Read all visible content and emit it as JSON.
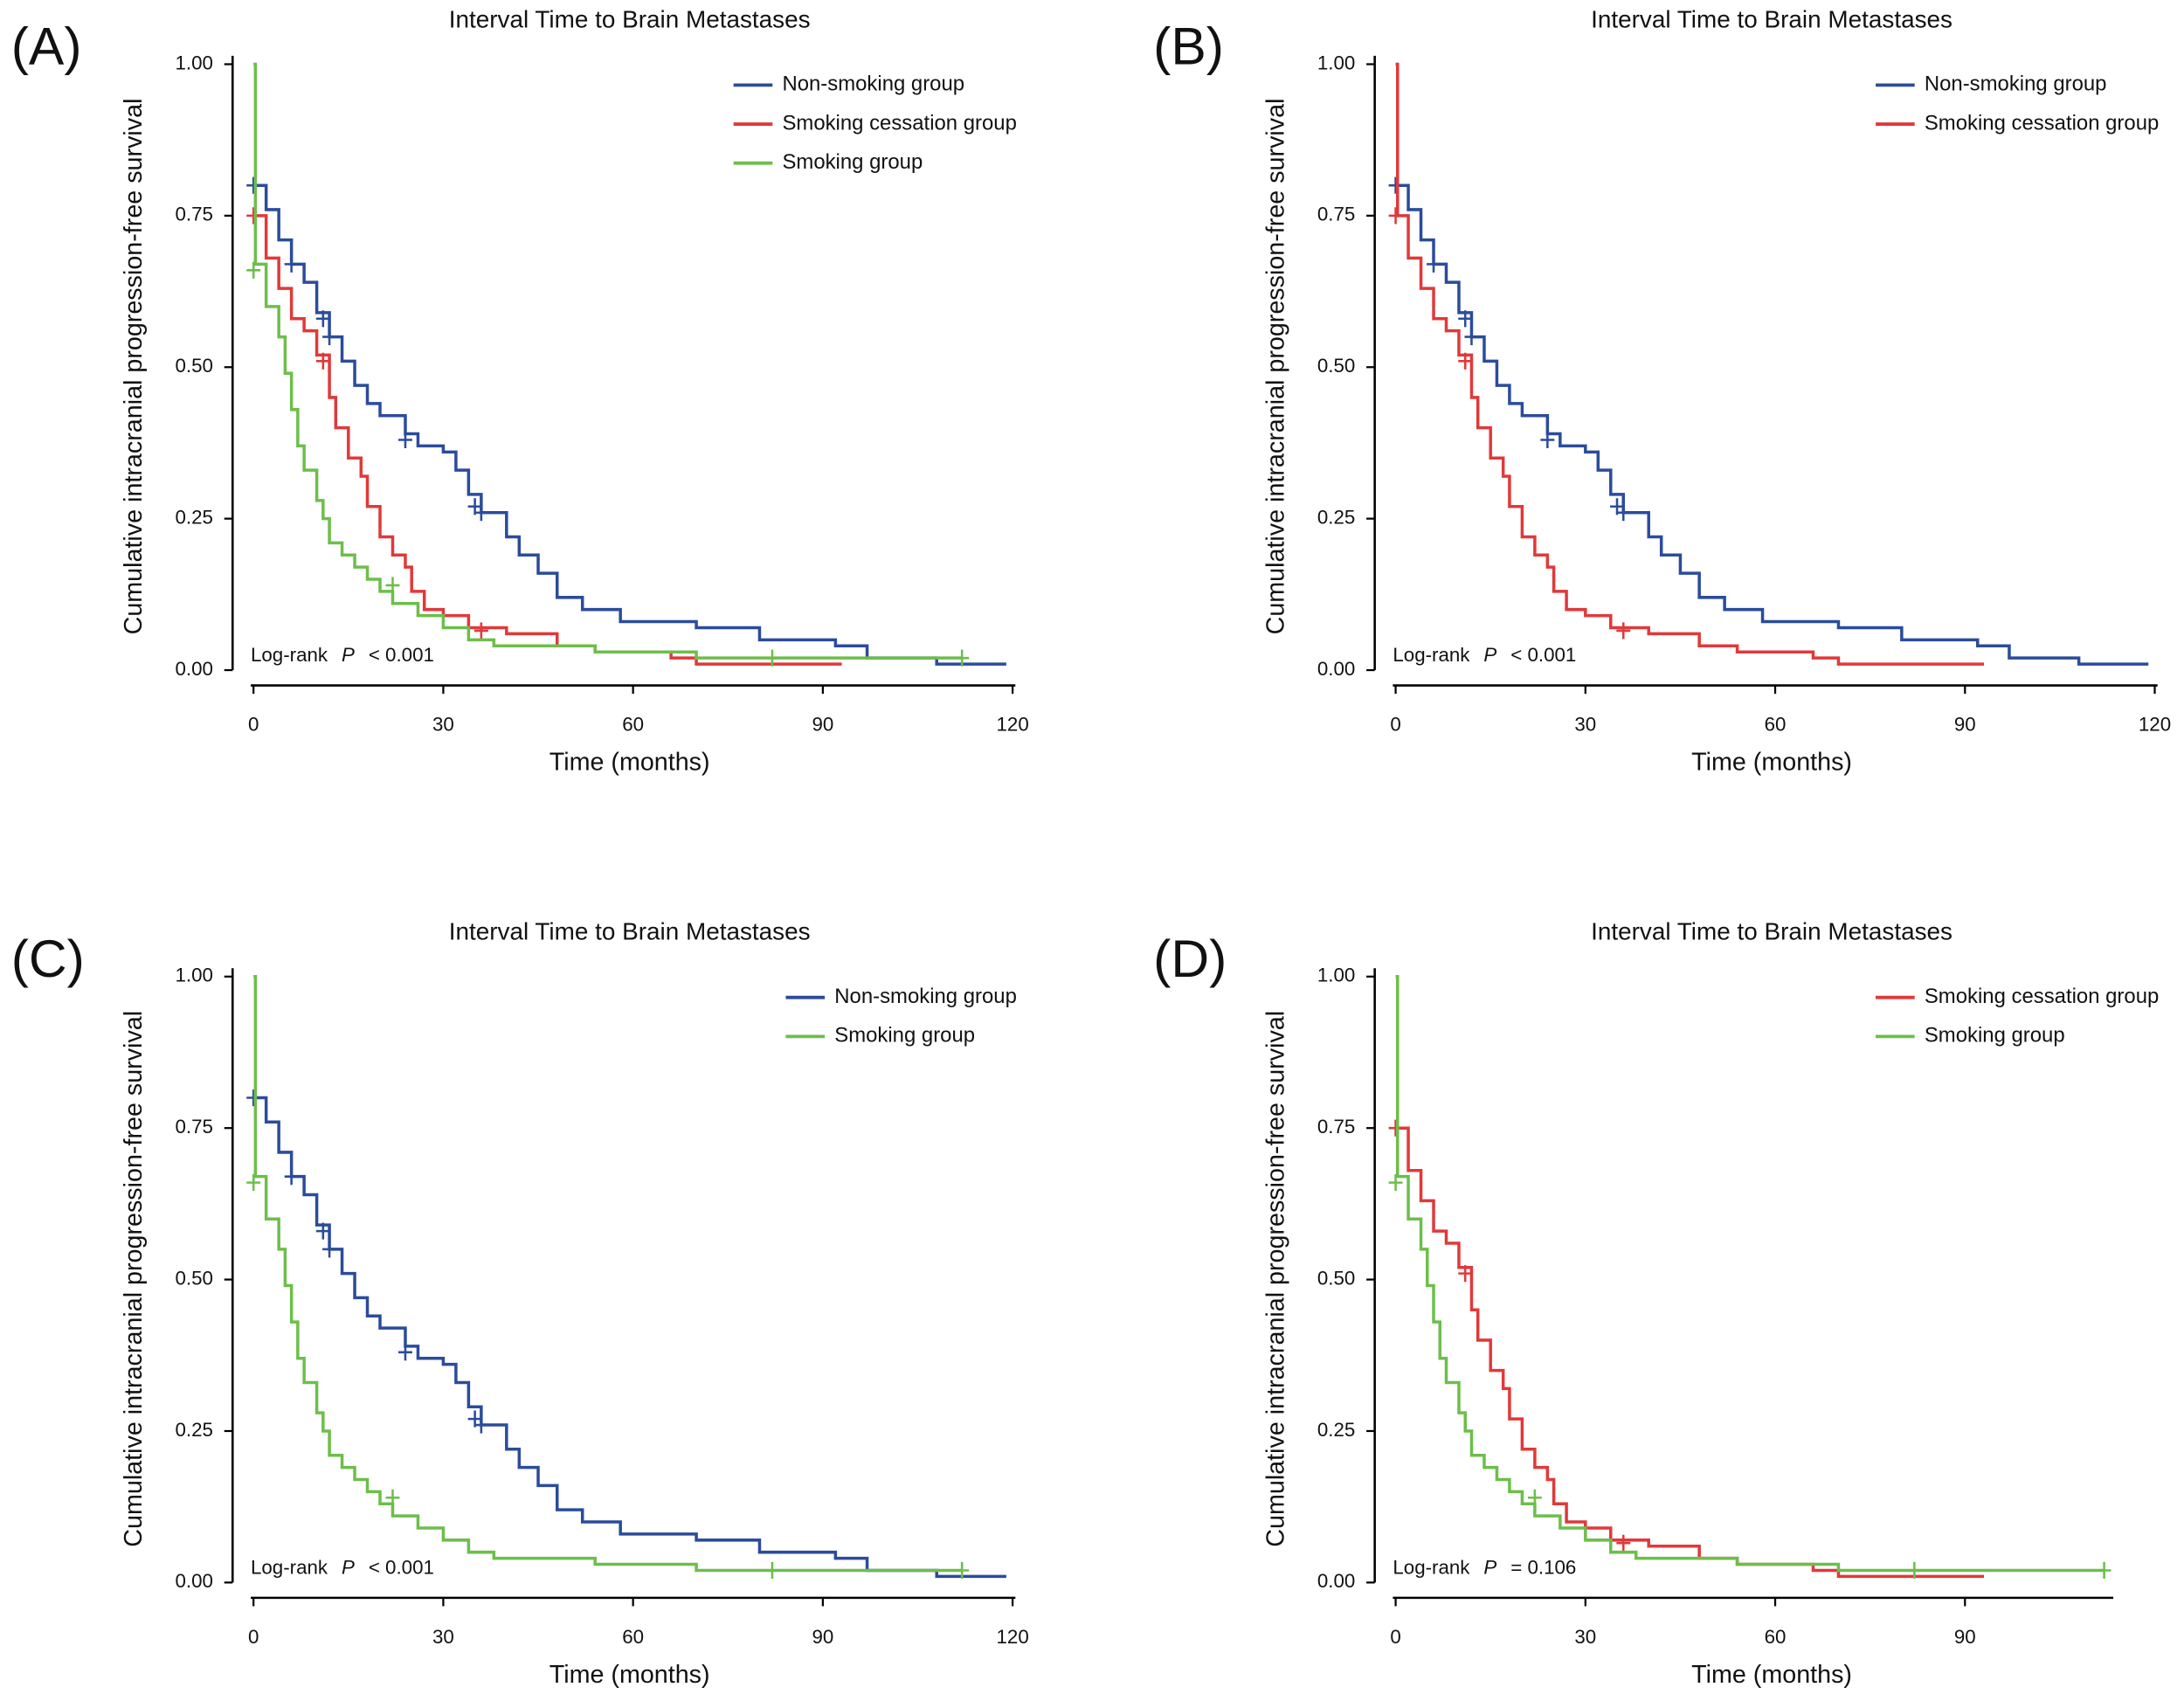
{
  "chart_data": [
    {
      "type": "step",
      "panel_label": "(A)",
      "title": "Interval Time to Brain Metastases",
      "x_label": "Time (months)",
      "y_label": "Cumulative intracranial progression-free survival",
      "xlim": [
        0,
        120
      ],
      "ylim": [
        0,
        1
      ],
      "xticks": [
        0,
        30,
        60,
        90,
        120
      ],
      "yticks": [
        {
          "value": 0,
          "label": "0.00"
        },
        {
          "value": 0.25,
          "label": "0.25"
        },
        {
          "value": 0.5,
          "label": "0.50"
        },
        {
          "value": 0.75,
          "label": "0.75"
        },
        {
          "value": 1,
          "label": "1.00"
        }
      ],
      "legend": "upper right",
      "annotation": {
        "method": "Log-rank",
        "stat": "P",
        "value": "< 0.001"
      },
      "series": [
        {
          "name": "Non-smoking group",
          "color": "#2b4c9b",
          "x": [
            0,
            2,
            4,
            6,
            8,
            10,
            12,
            14,
            16,
            18,
            20,
            24,
            26,
            30,
            32,
            34,
            36,
            40,
            42,
            45,
            48,
            52,
            58,
            70,
            80,
            92,
            97,
            108,
            119
          ],
          "values": [
            0.8,
            0.76,
            0.71,
            0.67,
            0.64,
            0.59,
            0.55,
            0.51,
            0.47,
            0.44,
            0.42,
            0.39,
            0.37,
            0.36,
            0.33,
            0.29,
            0.26,
            0.22,
            0.19,
            0.16,
            0.12,
            0.1,
            0.08,
            0.07,
            0.05,
            0.04,
            0.02,
            0.01,
            0.01
          ],
          "censor_x": [
            0,
            6,
            11,
            12,
            24,
            35,
            36
          ],
          "censor_values": [
            0.8,
            0.67,
            0.58,
            0.55,
            0.38,
            0.27,
            0.26
          ]
        },
        {
          "name": "Smoking cessation group",
          "color": "#e0393a",
          "x": [
            0,
            2,
            4,
            6,
            8,
            10,
            12,
            13,
            15,
            17,
            18,
            20,
            22,
            24,
            25,
            27,
            30,
            34,
            40,
            48,
            54,
            66,
            70,
            93
          ],
          "values": [
            0.75,
            0.68,
            0.63,
            0.58,
            0.56,
            0.52,
            0.45,
            0.4,
            0.35,
            0.32,
            0.27,
            0.22,
            0.19,
            0.17,
            0.13,
            0.1,
            0.09,
            0.07,
            0.06,
            0.04,
            0.03,
            0.02,
            0.01,
            0.01
          ],
          "censor_x": [
            0,
            11,
            36
          ],
          "censor_values": [
            0.75,
            0.51,
            0.065
          ]
        },
        {
          "name": "Smoking group",
          "color": "#6dbe4b",
          "x": [
            0,
            0.3,
            2,
            4,
            5,
            6,
            7,
            8,
            10,
            11,
            12,
            14,
            16,
            18,
            20,
            22,
            26,
            30,
            34,
            38,
            54,
            70,
            112
          ],
          "values": [
            1,
            0.67,
            0.6,
            0.55,
            0.49,
            0.43,
            0.37,
            0.33,
            0.28,
            0.25,
            0.21,
            0.19,
            0.17,
            0.15,
            0.13,
            0.11,
            0.09,
            0.07,
            0.05,
            0.04,
            0.03,
            0.02,
            0.02
          ],
          "censor_x": [
            0,
            22,
            82,
            112
          ],
          "censor_values": [
            0.66,
            0.14,
            0.02,
            0.02
          ]
        }
      ]
    },
    {
      "type": "step",
      "panel_label": "(B)",
      "title": "Interval Time to Brain Metastases",
      "x_label": "Time (months)",
      "y_label": "Cumulative intracranial progression-free survival",
      "xlim": [
        0,
        120
      ],
      "ylim": [
        0,
        1
      ],
      "xticks": [
        0,
        30,
        60,
        90,
        120
      ],
      "yticks": [
        {
          "value": 0,
          "label": "0.00"
        },
        {
          "value": 0.25,
          "label": "0.25"
        },
        {
          "value": 0.5,
          "label": "0.50"
        },
        {
          "value": 0.75,
          "label": "0.75"
        },
        {
          "value": 1,
          "label": "1.00"
        }
      ],
      "legend": "upper right",
      "annotation": {
        "method": "Log-rank",
        "stat": "P",
        "value": "< 0.001"
      },
      "series": [
        {
          "name": "Non-smoking group",
          "color": "#2b4c9b",
          "x": [
            0,
            2,
            4,
            6,
            8,
            10,
            12,
            14,
            16,
            18,
            20,
            24,
            26,
            30,
            32,
            34,
            36,
            40,
            42,
            45,
            48,
            52,
            58,
            70,
            80,
            92,
            97,
            108,
            119
          ],
          "values": [
            0.8,
            0.76,
            0.71,
            0.67,
            0.64,
            0.59,
            0.55,
            0.51,
            0.47,
            0.44,
            0.42,
            0.39,
            0.37,
            0.36,
            0.33,
            0.29,
            0.26,
            0.22,
            0.19,
            0.16,
            0.12,
            0.1,
            0.08,
            0.07,
            0.05,
            0.04,
            0.02,
            0.01,
            0.01
          ],
          "censor_x": [
            0,
            6,
            11,
            12,
            24,
            35,
            36
          ],
          "censor_values": [
            0.8,
            0.67,
            0.58,
            0.55,
            0.38,
            0.27,
            0.26
          ]
        },
        {
          "name": "Smoking cessation group",
          "color": "#e0393a",
          "x": [
            0,
            0.3,
            2,
            4,
            6,
            8,
            10,
            12,
            13,
            15,
            17,
            18,
            20,
            22,
            24,
            25,
            27,
            30,
            34,
            40,
            48,
            54,
            66,
            70,
            93
          ],
          "values": [
            1,
            0.75,
            0.68,
            0.63,
            0.58,
            0.56,
            0.52,
            0.45,
            0.4,
            0.35,
            0.32,
            0.27,
            0.22,
            0.19,
            0.17,
            0.13,
            0.1,
            0.09,
            0.07,
            0.06,
            0.04,
            0.03,
            0.02,
            0.01,
            0.01
          ],
          "censor_x": [
            0,
            11,
            36
          ],
          "censor_values": [
            0.75,
            0.51,
            0.065
          ]
        }
      ]
    },
    {
      "type": "step",
      "panel_label": "(C)",
      "title": "Interval Time to Brain Metastases",
      "x_label": "Time (months)",
      "y_label": "Cumulative intracranial progression-free survival",
      "xlim": [
        0,
        120
      ],
      "ylim": [
        0,
        1
      ],
      "xticks": [
        0,
        30,
        60,
        90,
        120
      ],
      "yticks": [
        {
          "value": 0,
          "label": "0.00"
        },
        {
          "value": 0.25,
          "label": "0.25"
        },
        {
          "value": 0.5,
          "label": "0.50"
        },
        {
          "value": 0.75,
          "label": "0.75"
        },
        {
          "value": 1,
          "label": "1.00"
        }
      ],
      "legend": "upper right",
      "annotation": {
        "method": "Log-rank",
        "stat": "P",
        "value": "< 0.001"
      },
      "series": [
        {
          "name": "Non-smoking group",
          "color": "#2b4c9b",
          "x": [
            0,
            2,
            4,
            6,
            8,
            10,
            12,
            14,
            16,
            18,
            20,
            24,
            26,
            30,
            32,
            34,
            36,
            40,
            42,
            45,
            48,
            52,
            58,
            70,
            80,
            92,
            97,
            108,
            119
          ],
          "values": [
            0.8,
            0.76,
            0.71,
            0.67,
            0.64,
            0.59,
            0.55,
            0.51,
            0.47,
            0.44,
            0.42,
            0.39,
            0.37,
            0.36,
            0.33,
            0.29,
            0.26,
            0.22,
            0.19,
            0.16,
            0.12,
            0.1,
            0.08,
            0.07,
            0.05,
            0.04,
            0.02,
            0.01,
            0.01
          ],
          "censor_x": [
            0,
            6,
            11,
            12,
            24,
            35,
            36
          ],
          "censor_values": [
            0.8,
            0.67,
            0.58,
            0.55,
            0.38,
            0.27,
            0.26
          ]
        },
        {
          "name": "Smoking group",
          "color": "#6dbe4b",
          "x": [
            0,
            0.3,
            2,
            4,
            5,
            6,
            7,
            8,
            10,
            11,
            12,
            14,
            16,
            18,
            20,
            22,
            26,
            30,
            34,
            38,
            54,
            70,
            112
          ],
          "values": [
            1,
            0.67,
            0.6,
            0.55,
            0.49,
            0.43,
            0.37,
            0.33,
            0.28,
            0.25,
            0.21,
            0.19,
            0.17,
            0.15,
            0.13,
            0.11,
            0.09,
            0.07,
            0.05,
            0.04,
            0.03,
            0.02,
            0.02
          ],
          "censor_x": [
            0,
            22,
            82,
            112
          ],
          "censor_values": [
            0.66,
            0.14,
            0.02,
            0.02
          ]
        }
      ]
    },
    {
      "type": "step",
      "panel_label": "(D)",
      "title": "Interval Time to Brain Metastases",
      "x_label": "Time (months)",
      "y_label": "Cumulative intracranial progression-free survival",
      "xlim": [
        0,
        113
      ],
      "ylim": [
        0,
        1
      ],
      "xticks": [
        0,
        30,
        60,
        90
      ],
      "yticks": [
        {
          "value": 0,
          "label": "0.00"
        },
        {
          "value": 0.25,
          "label": "0.25"
        },
        {
          "value": 0.5,
          "label": "0.50"
        },
        {
          "value": 0.75,
          "label": "0.75"
        },
        {
          "value": 1,
          "label": "1.00"
        }
      ],
      "legend": "upper right",
      "annotation": {
        "method": "Log-rank",
        "stat": "P",
        "value": "= 0.106"
      },
      "series": [
        {
          "name": "Smoking cessation group",
          "color": "#e0393a",
          "x": [
            0,
            2,
            4,
            6,
            8,
            10,
            12,
            13,
            15,
            17,
            18,
            20,
            22,
            24,
            25,
            27,
            30,
            34,
            40,
            48,
            54,
            66,
            70,
            93
          ],
          "values": [
            0.75,
            0.68,
            0.63,
            0.58,
            0.56,
            0.52,
            0.45,
            0.4,
            0.35,
            0.32,
            0.27,
            0.22,
            0.19,
            0.17,
            0.13,
            0.1,
            0.09,
            0.07,
            0.06,
            0.04,
            0.03,
            0.02,
            0.01,
            0.01
          ],
          "censor_x": [
            0,
            11,
            36
          ],
          "censor_values": [
            0.75,
            0.51,
            0.065
          ]
        },
        {
          "name": "Smoking group",
          "color": "#6dbe4b",
          "x": [
            0,
            0.3,
            2,
            4,
            5,
            6,
            7,
            8,
            10,
            11,
            12,
            14,
            16,
            18,
            20,
            22,
            26,
            30,
            34,
            38,
            54,
            70,
            112
          ],
          "values": [
            1,
            0.67,
            0.6,
            0.55,
            0.49,
            0.43,
            0.37,
            0.33,
            0.28,
            0.25,
            0.21,
            0.19,
            0.17,
            0.15,
            0.13,
            0.11,
            0.09,
            0.07,
            0.05,
            0.04,
            0.03,
            0.02,
            0.02
          ],
          "censor_x": [
            0,
            22,
            82,
            112
          ],
          "censor_values": [
            0.66,
            0.14,
            0.02,
            0.02
          ]
        }
      ]
    }
  ]
}
